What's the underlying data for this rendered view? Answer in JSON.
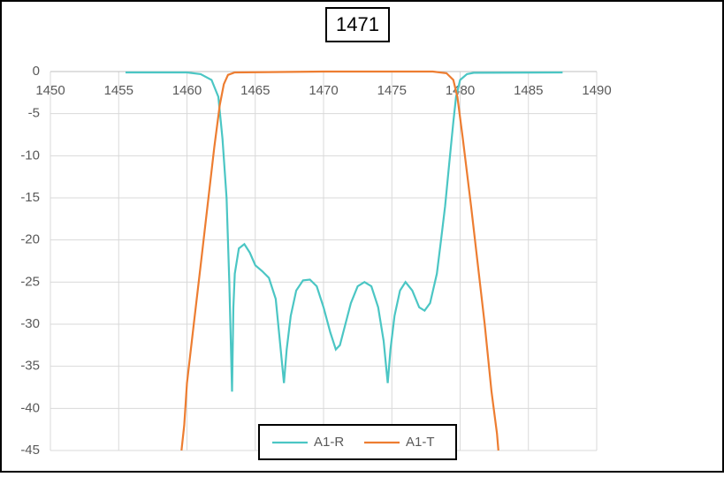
{
  "chart_data": {
    "type": "line",
    "title": "1471",
    "xlim": [
      1450,
      1490
    ],
    "xticks": [
      1450,
      1455,
      1460,
      1465,
      1470,
      1475,
      1480,
      1485,
      1490
    ],
    "ylim": [
      -45,
      0
    ],
    "yticks": [
      0,
      -5,
      -10,
      -15,
      -20,
      -25,
      -30,
      -35,
      -40,
      -45
    ],
    "grid": true,
    "legend": "bottom",
    "series": [
      {
        "name": "A1-R",
        "color": "#4bc6c4",
        "x": [
          1455.5,
          1460,
          1461,
          1461.8,
          1462.3,
          1462.6,
          1462.9,
          1463.1,
          1463.3,
          1463.4,
          1463.5,
          1463.8,
          1464.2,
          1464.6,
          1465,
          1465.5,
          1466,
          1466.5,
          1466.8,
          1467.1,
          1467.3,
          1467.6,
          1468,
          1468.5,
          1469,
          1469.5,
          1470,
          1470.5,
          1470.9,
          1471.2,
          1471.6,
          1472,
          1472.5,
          1473,
          1473.5,
          1474,
          1474.4,
          1474.7,
          1474.9,
          1475.2,
          1475.6,
          1476,
          1476.5,
          1477,
          1477.4,
          1477.8,
          1478.3,
          1478.6,
          1478.9,
          1479.2,
          1479.5,
          1479.7,
          1480,
          1480.5,
          1481,
          1487.5
        ],
        "values": [
          -0.1,
          -0.1,
          -0.3,
          -1,
          -3,
          -8,
          -15,
          -25,
          -38,
          -28,
          -24,
          -21,
          -20.5,
          -21.5,
          -23,
          -23.7,
          -24.5,
          -27,
          -32,
          -37,
          -33,
          -29,
          -26,
          -24.8,
          -24.7,
          -25.5,
          -28,
          -31,
          -33,
          -32.5,
          -30,
          -27.5,
          -25.5,
          -25,
          -25.5,
          -28,
          -32,
          -37,
          -33,
          -29,
          -26,
          -25,
          -26,
          -28,
          -28.4,
          -27.5,
          -24,
          -20,
          -16,
          -11,
          -6,
          -3,
          -1,
          -0.3,
          -0.15,
          -0.1
        ]
      },
      {
        "name": "A1-T",
        "color": "#ed7d31",
        "x": [
          1459.6,
          1459.8,
          1460,
          1460.5,
          1461,
          1461.5,
          1462,
          1462.4,
          1462.7,
          1463,
          1463.5,
          1470,
          1478,
          1479,
          1479.5,
          1479.8,
          1480.2,
          1480.8,
          1481.3,
          1481.8,
          1482.3,
          1482.7,
          1482.8
        ],
        "values": [
          -45,
          -42,
          -37,
          -30,
          -23,
          -16,
          -9,
          -4,
          -1.5,
          -0.4,
          -0.1,
          0,
          0,
          -0.2,
          -1,
          -3,
          -8,
          -16,
          -23,
          -30,
          -38,
          -43,
          -45
        ]
      }
    ]
  }
}
